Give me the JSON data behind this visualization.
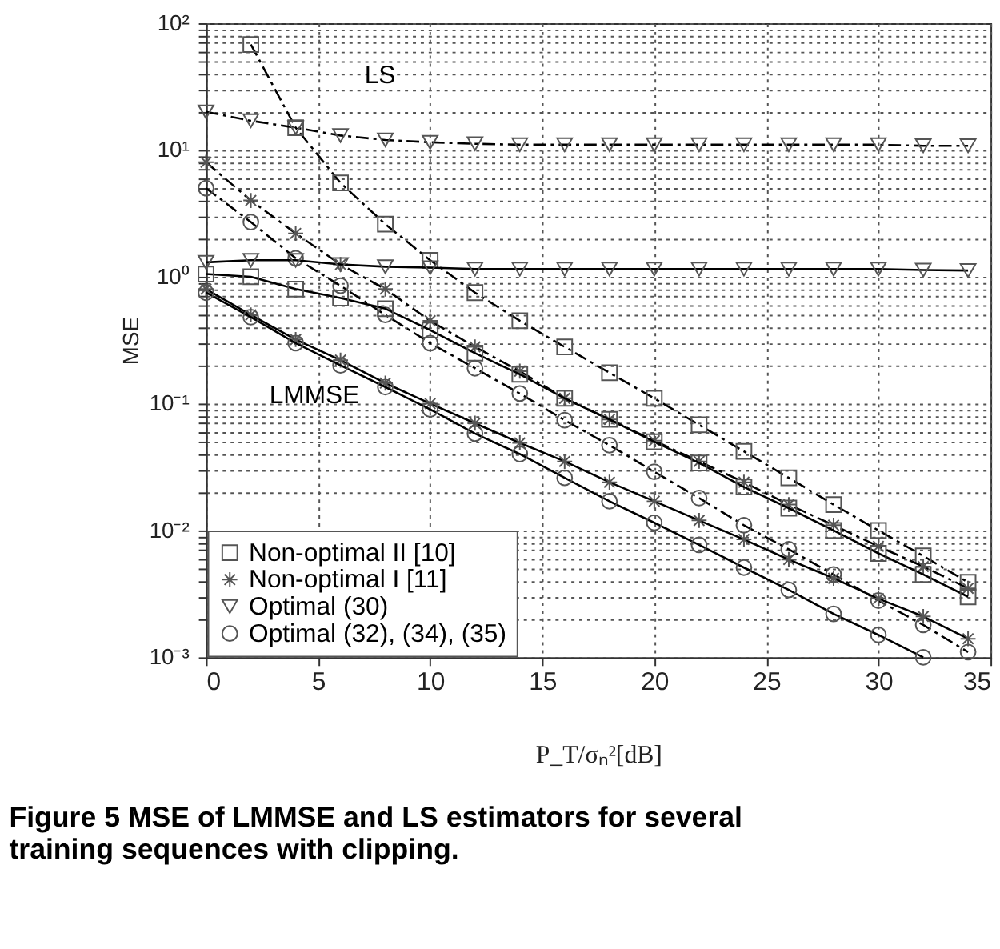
{
  "chart_data": {
    "type": "line",
    "title": "Figure 5 MSE of LMMSE and LS estimators for several training sequences with clipping.",
    "xlabel": "P_T/σₙ²[dB]",
    "ylabel": "MSE",
    "xlim": [
      0,
      35
    ],
    "xticks": [
      0,
      5,
      10,
      15,
      20,
      25,
      30,
      35
    ],
    "ylim": [
      0.001,
      100
    ],
    "log": "y",
    "yticks": [
      {
        "value": 0.001,
        "label": "10⁻³"
      },
      {
        "value": 0.002,
        "label": null
      },
      {
        "value": 0.003,
        "label": null
      },
      {
        "value": 0.004,
        "label": null
      },
      {
        "value": 0.005,
        "label": null
      },
      {
        "value": 0.006,
        "label": null
      },
      {
        "value": 0.007,
        "label": null
      },
      {
        "value": 0.008,
        "label": null
      },
      {
        "value": 0.009,
        "label": null
      },
      {
        "value": 0.01,
        "label": "10⁻²"
      },
      {
        "value": 0.02,
        "label": null
      },
      {
        "value": 0.03,
        "label": null
      },
      {
        "value": 0.04,
        "label": null
      },
      {
        "value": 0.05,
        "label": null
      },
      {
        "value": 0.06,
        "label": null
      },
      {
        "value": 0.07,
        "label": null
      },
      {
        "value": 0.08,
        "label": null
      },
      {
        "value": 0.09,
        "label": null
      },
      {
        "value": 0.1,
        "label": "10⁻¹"
      },
      {
        "value": 0.2,
        "label": null
      },
      {
        "value": 0.3,
        "label": null
      },
      {
        "value": 0.4,
        "label": null
      },
      {
        "value": 0.5,
        "label": null
      },
      {
        "value": 0.6,
        "label": null
      },
      {
        "value": 0.7,
        "label": null
      },
      {
        "value": 0.8,
        "label": null
      },
      {
        "value": 0.9,
        "label": null
      },
      {
        "value": 1,
        "label": "10⁰"
      },
      {
        "value": 2,
        "label": null
      },
      {
        "value": 3,
        "label": null
      },
      {
        "value": 4,
        "label": null
      },
      {
        "value": 5,
        "label": null
      },
      {
        "value": 6,
        "label": null
      },
      {
        "value": 7,
        "label": null
      },
      {
        "value": 8,
        "label": null
      },
      {
        "value": 9,
        "label": null
      },
      {
        "value": 10,
        "label": "10¹"
      },
      {
        "value": 20,
        "label": null
      },
      {
        "value": 30,
        "label": null
      },
      {
        "value": 40,
        "label": null
      },
      {
        "value": 50,
        "label": null
      },
      {
        "value": 60,
        "label": null
      },
      {
        "value": 70,
        "label": null
      },
      {
        "value": 80,
        "label": null
      },
      {
        "value": 90,
        "label": null
      },
      {
        "value": 100,
        "label": "10²"
      }
    ],
    "grid": true,
    "legend": "bottom left",
    "annotations": [
      "LS",
      "LMMSE"
    ],
    "series": [
      {
        "name": "Non-optimal II [10]",
        "color": "#000000",
        "marker": "square",
        "line_style": "dashed",
        "x": [
          2,
          4,
          6,
          8,
          10,
          12,
          14,
          16,
          18,
          20,
          22,
          24,
          26,
          28,
          30,
          32,
          34
        ],
        "values": [
          68,
          15,
          5.5,
          2.6,
          1.35,
          0.75,
          0.45,
          0.28,
          0.175,
          0.11,
          0.068,
          0.042,
          0.026,
          0.016,
          0.01,
          0.0063,
          0.0039
        ]
      },
      {
        "name": "Non-optimal I [11]",
        "color": "#000000",
        "marker": "cross",
        "line_style": "dashed",
        "x": [
          0,
          2,
          4,
          6,
          8,
          10,
          12,
          14,
          16,
          18,
          20,
          22,
          24,
          26,
          28,
          30,
          32,
          34
        ],
        "values": [
          8,
          4,
          2.2,
          1.25,
          0.8,
          0.45,
          0.28,
          0.18,
          0.11,
          0.075,
          0.051,
          0.035,
          0.024,
          0.016,
          0.011,
          0.0075,
          0.0052,
          0.0035
        ]
      },
      {
        "name": "Optimal (30)",
        "color": "#000000",
        "marker": "triangle",
        "line_style": "dashed",
        "x": [
          0,
          2,
          4,
          6,
          8,
          10,
          12,
          14,
          16,
          18,
          20,
          22,
          24,
          26,
          28,
          30,
          32,
          34
        ],
        "values": [
          20,
          17,
          15,
          13,
          12,
          11.5,
          11.2,
          11,
          11,
          11,
          11,
          11,
          11,
          11,
          11,
          11,
          10.8,
          10.8
        ]
      },
      {
        "name": "Optimal (32), (34), (35)",
        "color": "#000000",
        "marker": "circle",
        "line_style": "dashed",
        "x": [
          0,
          2,
          4,
          6,
          8,
          10,
          12,
          14,
          16,
          18,
          20,
          22,
          24,
          26,
          28,
          30,
          32,
          34
        ],
        "values": [
          5,
          2.7,
          1.4,
          0.85,
          0.5,
          0.3,
          0.19,
          0.12,
          0.074,
          0.047,
          0.029,
          0.018,
          0.011,
          0.0071,
          0.0045,
          0.0028,
          0.0018,
          0.0011
        ]
      },
      {
        "color": "#000000",
        "marker": "square",
        "line_style": "solid",
        "x": [
          0,
          2,
          4,
          6,
          8,
          10,
          12,
          14,
          16,
          18,
          20,
          22,
          24,
          26,
          28,
          30,
          32,
          34
        ],
        "values": [
          1.05,
          1.0,
          0.8,
          0.68,
          0.56,
          0.38,
          0.25,
          0.17,
          0.11,
          0.075,
          0.05,
          0.034,
          0.022,
          0.015,
          0.01,
          0.0066,
          0.0045,
          0.003
        ]
      },
      {
        "color": "#000000",
        "marker": "cross",
        "line_style": "solid",
        "x": [
          0,
          2,
          4,
          6,
          8,
          10,
          12,
          14,
          16,
          18,
          20,
          22,
          24,
          26,
          28,
          30,
          32,
          34
        ],
        "values": [
          0.8,
          0.5,
          0.32,
          0.22,
          0.145,
          0.1,
          0.07,
          0.049,
          0.035,
          0.024,
          0.017,
          0.012,
          0.0085,
          0.0059,
          0.0042,
          0.0029,
          0.0021,
          0.0014
        ]
      },
      {
        "color": "#000000",
        "marker": "triangle",
        "line_style": "solid",
        "x": [
          0,
          2,
          4,
          6,
          8,
          10,
          12,
          14,
          16,
          18,
          20,
          22,
          24,
          26,
          28,
          30,
          32,
          34
        ],
        "values": [
          1.3,
          1.35,
          1.35,
          1.25,
          1.2,
          1.18,
          1.15,
          1.15,
          1.15,
          1.15,
          1.15,
          1.15,
          1.15,
          1.15,
          1.15,
          1.15,
          1.13,
          1.12
        ]
      },
      {
        "color": "#000000",
        "marker": "circle",
        "line_style": "solid",
        "x": [
          0,
          2,
          4,
          6,
          8,
          10,
          12,
          14,
          16,
          18,
          20,
          22,
          24,
          26,
          28,
          30,
          32
        ],
        "values": [
          0.75,
          0.48,
          0.3,
          0.2,
          0.135,
          0.09,
          0.058,
          0.04,
          0.026,
          0.017,
          0.0115,
          0.0077,
          0.0051,
          0.0034,
          0.0022,
          0.0015,
          0.001
        ]
      }
    ]
  }
}
